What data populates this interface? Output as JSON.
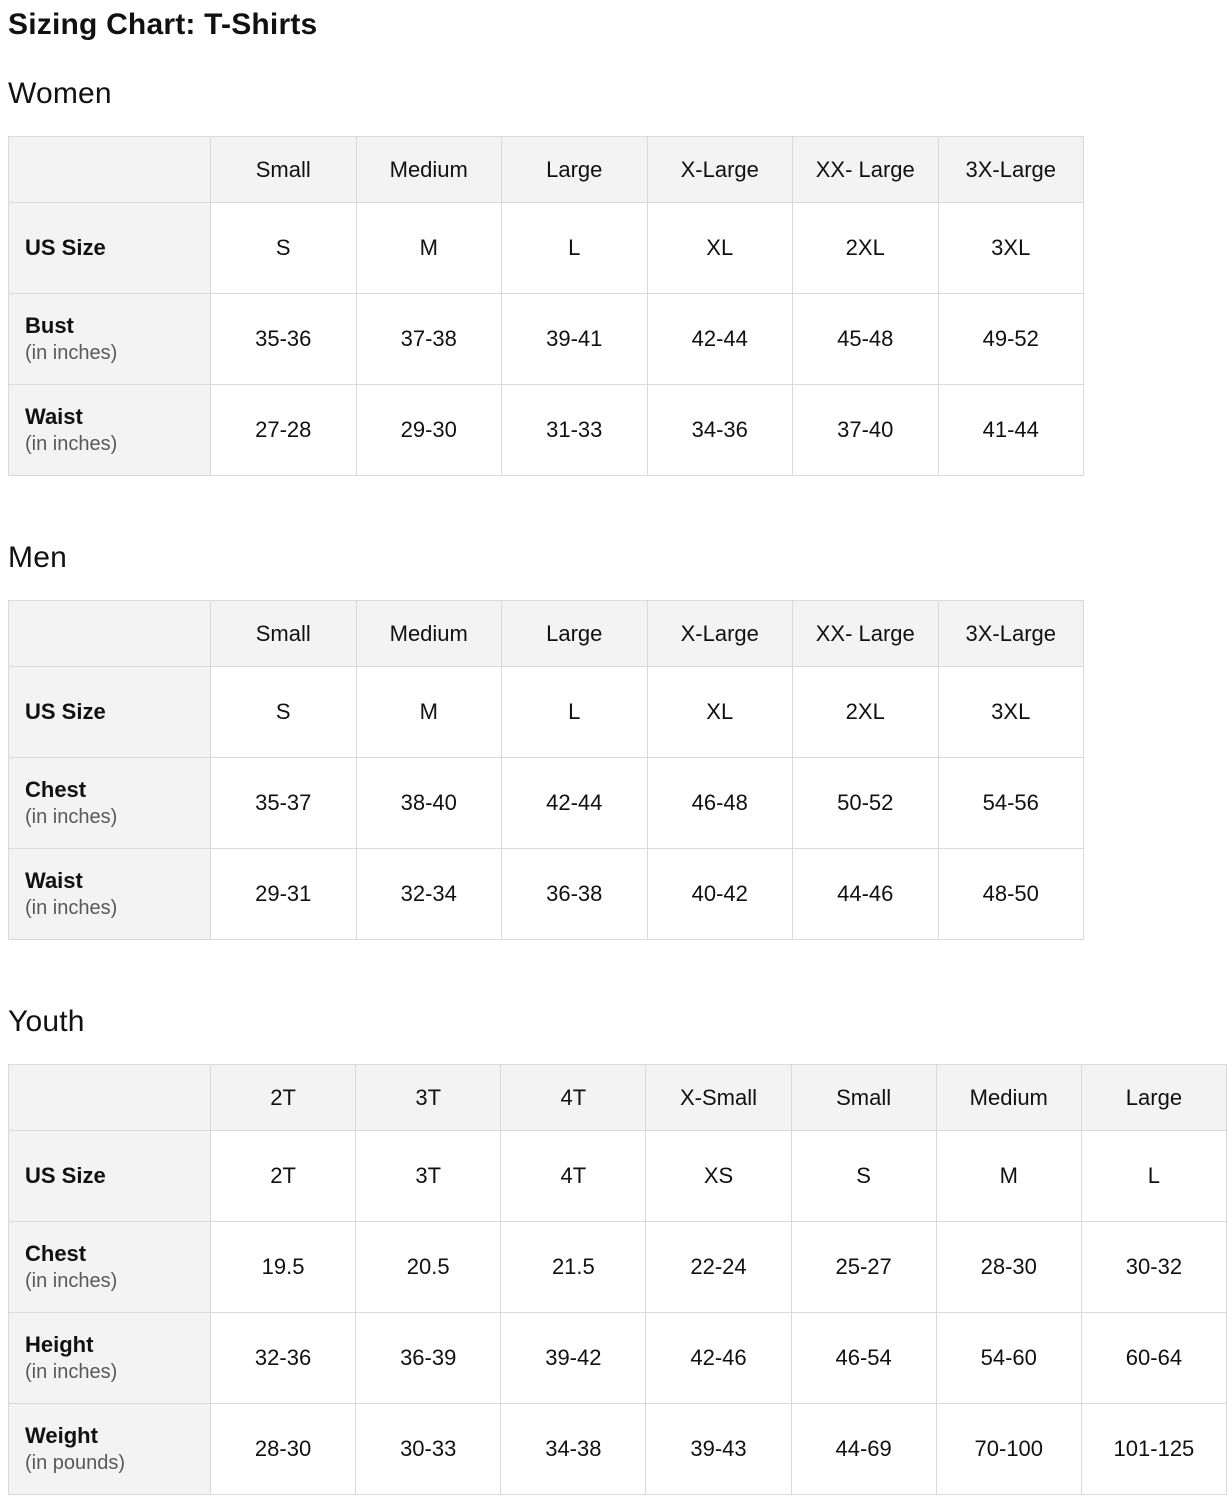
{
  "page": {
    "title": "Sizing Chart: T-Shirts"
  },
  "colors": {
    "header_bg": "#f3f3f3",
    "grid_border": "#d9d9d9",
    "text": "#111111",
    "sublabel_text": "#595959"
  },
  "sections": [
    {
      "heading": "Women",
      "table": {
        "column_headers": [
          "",
          "Small",
          "Medium",
          "Large",
          "X-Large",
          "XX- Large",
          "3X-Large"
        ],
        "rows": [
          {
            "label": "US Size",
            "sublabel": "",
            "values": [
              "S",
              "M",
              "L",
              "XL",
              "2XL",
              "3XL"
            ]
          },
          {
            "label": "Bust",
            "sublabel": "(in inches)",
            "values": [
              "35-36",
              "37-38",
              "39-41",
              "42-44",
              "45-48",
              "49-52"
            ]
          },
          {
            "label": "Waist",
            "sublabel": "(in inches)",
            "values": [
              "27-28",
              "29-30",
              "31-33",
              "34-36",
              "37-40",
              "41-44"
            ]
          }
        ]
      }
    },
    {
      "heading": "Men",
      "table": {
        "column_headers": [
          "",
          "Small",
          "Medium",
          "Large",
          "X-Large",
          "XX- Large",
          "3X-Large"
        ],
        "rows": [
          {
            "label": "US Size",
            "sublabel": "",
            "values": [
              "S",
              "M",
              "L",
              "XL",
              "2XL",
              "3XL"
            ]
          },
          {
            "label": "Chest",
            "sublabel": "(in inches)",
            "values": [
              "35-37",
              "38-40",
              "42-44",
              "46-48",
              "50-52",
              "54-56"
            ]
          },
          {
            "label": "Waist",
            "sublabel": "(in inches)",
            "values": [
              "29-31",
              "32-34",
              "36-38",
              "40-42",
              "44-46",
              "48-50"
            ]
          }
        ]
      }
    },
    {
      "heading": "Youth",
      "table": {
        "column_headers": [
          "",
          "2T",
          "3T",
          "4T",
          "X-Small",
          "Small",
          "Medium",
          "Large"
        ],
        "rows": [
          {
            "label": "US Size",
            "sublabel": "",
            "values": [
              "2T",
              "3T",
              "4T",
              "XS",
              "S",
              "M",
              "L"
            ]
          },
          {
            "label": "Chest",
            "sublabel": "(in inches)",
            "values": [
              "19.5",
              "20.5",
              "21.5",
              "22-24",
              "25-27",
              "28-30",
              "30-32"
            ]
          },
          {
            "label": "Height",
            "sublabel": "(in inches)",
            "values": [
              "32-36",
              "36-39",
              "39-42",
              "42-46",
              "46-54",
              "54-60",
              "60-64"
            ]
          },
          {
            "label": "Weight",
            "sublabel": "(in pounds)",
            "values": [
              "28-30",
              "30-33",
              "34-38",
              "39-43",
              "44-69",
              "70-100",
              "101-125"
            ]
          }
        ]
      }
    }
  ]
}
